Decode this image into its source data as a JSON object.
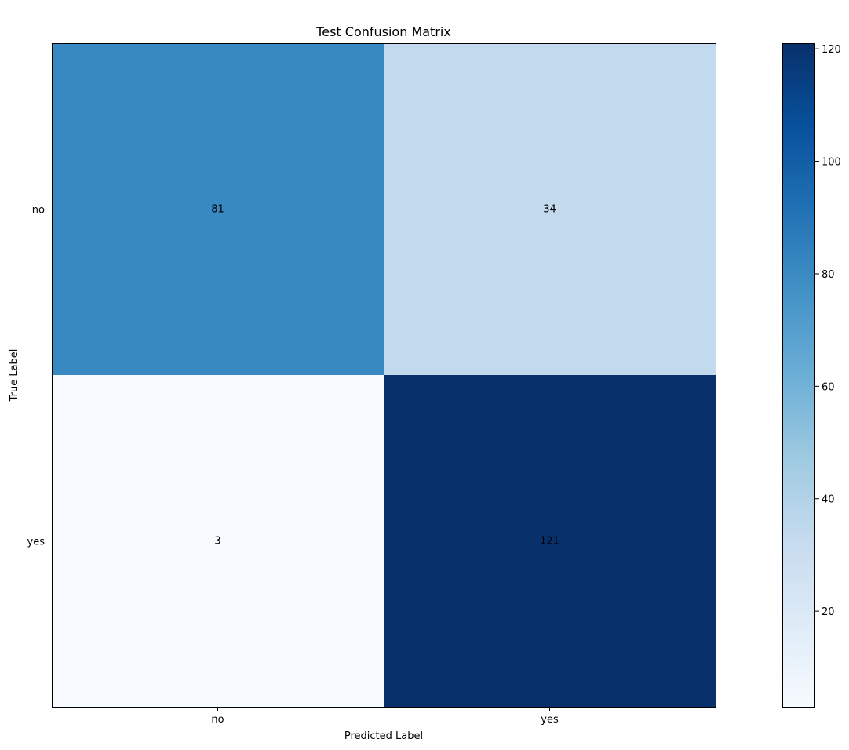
{
  "chart_data": {
    "type": "heatmap",
    "title": "Test Confusion Matrix",
    "xlabel": "Predicted Label",
    "ylabel": "True Label",
    "x_categories": [
      "no",
      "yes"
    ],
    "y_categories": [
      "no",
      "yes"
    ],
    "values": [
      [
        81,
        34
      ],
      [
        3,
        121
      ]
    ],
    "colormap": "Blues",
    "color_range": [
      3,
      121
    ],
    "colorbar_ticks": [
      "20",
      "40",
      "60",
      "80",
      "100",
      "120"
    ],
    "colorbar_tick_values": [
      20,
      40,
      60,
      80,
      100,
      120
    ],
    "grid": false
  }
}
